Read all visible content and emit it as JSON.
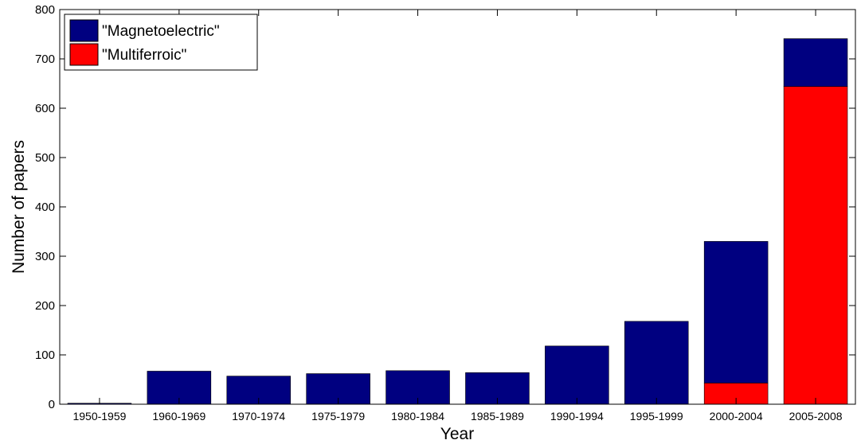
{
  "chart_data": {
    "type": "bar",
    "stacked": true,
    "categories": [
      "1950-1959",
      "1960-1969",
      "1970-1974",
      "1975-1979",
      "1980-1984",
      "1985-1989",
      "1990-1994",
      "1995-1999",
      "2000-2004",
      "2005-2008"
    ],
    "series": [
      {
        "name": "\"Magnetoelectric\"",
        "color": "#000080",
        "values": [
          2,
          67,
          57,
          62,
          68,
          64,
          118,
          168,
          287,
          97
        ]
      },
      {
        "name": "\"Multiferroic\"",
        "color": "#ff0000",
        "values": [
          0,
          0,
          0,
          0,
          0,
          0,
          0,
          0,
          43,
          644
        ]
      }
    ],
    "xlabel": "Year",
    "ylabel": "Number of papers",
    "ylim": [
      0,
      800
    ],
    "yticks": [
      "0",
      "100",
      "200",
      "300",
      "400",
      "500",
      "600",
      "700",
      "800"
    ],
    "grid": false,
    "legend_position": "top-left"
  }
}
